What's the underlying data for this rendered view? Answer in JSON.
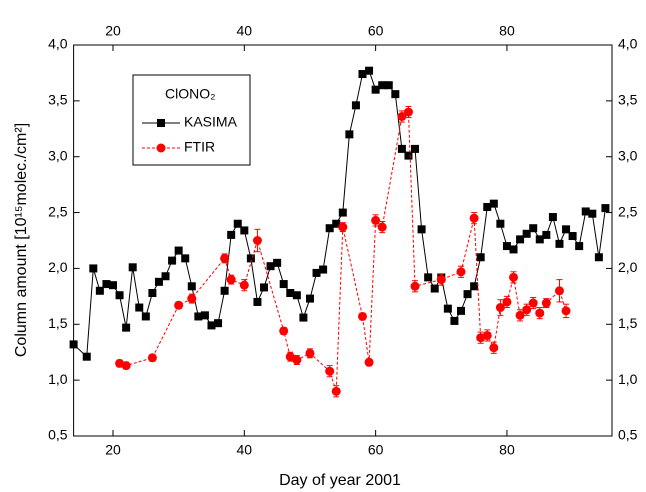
{
  "chart_data": {
    "type": "line",
    "xlabel": "Day of year 2001",
    "ylabel": "Column amount [10¹⁵molec./cm²]",
    "legend_title": "ClONO₂",
    "xlim": [
      14,
      96
    ],
    "xticks": [
      20,
      40,
      60,
      80
    ],
    "ylim": [
      0.5,
      4.0
    ],
    "yticks": [
      {
        "value": 0.5,
        "label": "0,5"
      },
      {
        "value": 1.0,
        "label": "1,0"
      },
      {
        "value": 1.5,
        "label": "1,5"
      },
      {
        "value": 2.0,
        "label": "2,0"
      },
      {
        "value": 2.5,
        "label": "2,5"
      },
      {
        "value": 3.0,
        "label": "3,0"
      },
      {
        "value": 3.5,
        "label": "3,5"
      },
      {
        "value": 4.0,
        "label": "4,0"
      }
    ],
    "series": [
      {
        "name": "KASIMA",
        "color": "#000000",
        "x": [
          14,
          16,
          17,
          18,
          19,
          20,
          21,
          22,
          23,
          24,
          25,
          26,
          27,
          28,
          29,
          30,
          31,
          32,
          33,
          34,
          35,
          36,
          37,
          38,
          39,
          40,
          41,
          42,
          43,
          44,
          45,
          46,
          47,
          48,
          49,
          50,
          51,
          52,
          53,
          54,
          55,
          56,
          57,
          58,
          59,
          60,
          61,
          62,
          63,
          64,
          65,
          66,
          67,
          68,
          69,
          70,
          71,
          72,
          73,
          74,
          75,
          76,
          77,
          78,
          79,
          80,
          81,
          82,
          83,
          84,
          85,
          86,
          87,
          88,
          89,
          90,
          91,
          92,
          93,
          94,
          95
        ],
        "values": [
          1.32,
          1.21,
          2.0,
          1.8,
          1.86,
          1.85,
          1.76,
          1.47,
          2.01,
          1.65,
          1.57,
          1.78,
          1.88,
          1.93,
          2.07,
          2.16,
          2.09,
          1.84,
          1.57,
          1.58,
          1.49,
          1.51,
          1.8,
          2.3,
          2.4,
          2.34,
          2.09,
          1.7,
          1.83,
          2.02,
          2.05,
          1.86,
          1.78,
          1.76,
          1.56,
          1.73,
          1.96,
          1.99,
          2.36,
          2.4,
          2.5,
          3.2,
          3.46,
          3.74,
          3.77,
          3.6,
          3.64,
          3.64,
          3.56,
          3.07,
          3.01,
          3.07,
          2.35,
          1.92,
          1.82,
          1.92,
          1.64,
          1.53,
          1.62,
          1.77,
          1.84,
          2.1,
          2.55,
          2.58,
          2.4,
          2.2,
          2.17,
          2.26,
          2.31,
          2.36,
          2.26,
          2.3,
          2.46,
          2.22,
          2.35,
          2.29,
          2.2,
          2.51,
          2.49,
          2.1,
          2.54
        ]
      },
      {
        "name": "FTIR",
        "color": "#ff0000",
        "x": [
          21,
          22,
          26,
          30,
          32,
          37,
          38,
          40,
          42,
          46,
          47,
          48,
          50,
          53,
          54,
          55,
          58,
          59,
          60,
          61,
          64,
          65,
          66,
          70,
          73,
          75,
          76,
          77,
          78,
          79,
          80,
          81,
          82,
          83,
          84,
          85,
          86,
          88,
          89
        ],
        "values": [
          1.15,
          1.13,
          1.2,
          1.67,
          1.73,
          2.09,
          1.9,
          1.85,
          2.25,
          1.44,
          1.21,
          1.18,
          1.24,
          1.08,
          0.9,
          2.37,
          1.57,
          1.16,
          2.43,
          2.37,
          3.36,
          3.4,
          1.84,
          1.9,
          1.97,
          2.45,
          1.38,
          1.4,
          1.29,
          1.65,
          1.7,
          1.92,
          1.58,
          1.63,
          1.69,
          1.6,
          1.69,
          1.8,
          1.62
        ],
        "errors": [
          0.03,
          0.03,
          0.03,
          0.03,
          0.04,
          0.04,
          0.04,
          0.05,
          0.1,
          0.03,
          0.04,
          0.04,
          0.04,
          0.05,
          0.05,
          0.04,
          0.03,
          0.03,
          0.05,
          0.05,
          0.05,
          0.05,
          0.05,
          0.05,
          0.05,
          0.05,
          0.05,
          0.05,
          0.05,
          0.07,
          0.05,
          0.05,
          0.05,
          0.05,
          0.05,
          0.05,
          0.04,
          0.1,
          0.06
        ]
      }
    ]
  }
}
